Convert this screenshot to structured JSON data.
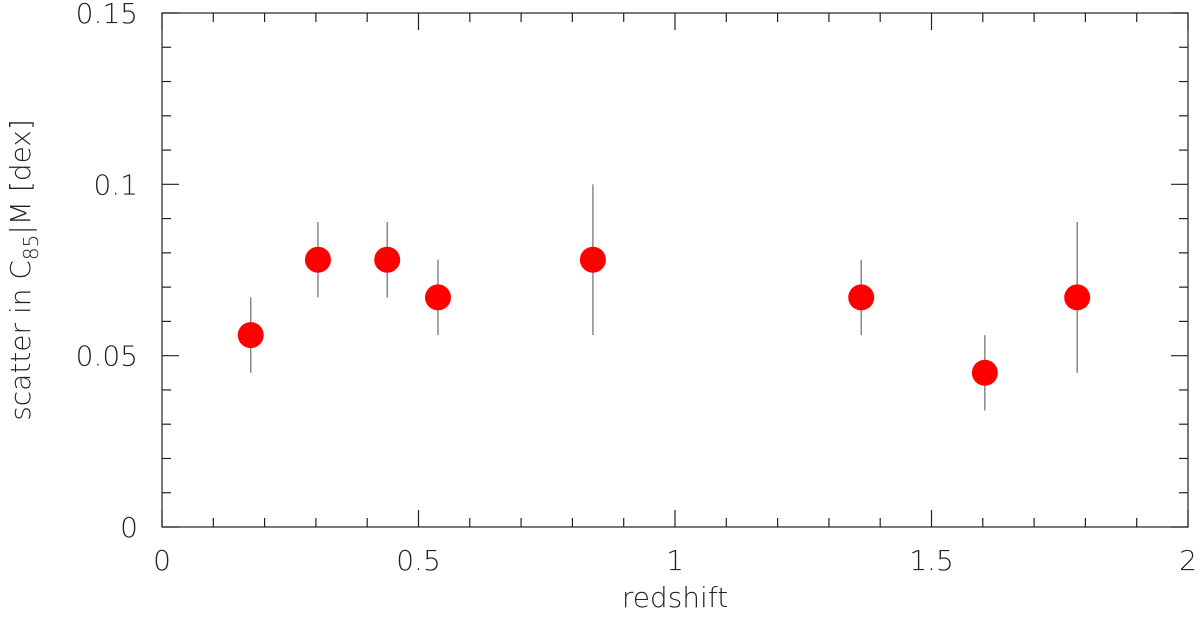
{
  "chart_data": {
    "type": "scatter",
    "xlabel": "redshift",
    "ylabel_start": "scatter in C",
    "ylabel_sub": "85",
    "ylabel_end": "|M [dex]",
    "x": [
      0.173,
      0.304,
      0.439,
      0.538,
      0.84,
      1.363,
      1.604,
      1.784
    ],
    "values": [
      0.056,
      0.078,
      0.078,
      0.067,
      0.078,
      0.067,
      0.045,
      0.067
    ],
    "errors": [
      0.011,
      0.011,
      0.011,
      0.011,
      0.022,
      0.011,
      0.011,
      0.022
    ],
    "color": "#ff0000",
    "error_color": "#777777",
    "xlim": [
      0,
      2
    ],
    "ylim": [
      0,
      0.15
    ],
    "xticks": [
      0,
      0.5,
      1,
      1.5,
      2
    ],
    "yticks": [
      0,
      0.05,
      0.1,
      0.15
    ],
    "xminorticks": [
      0.1,
      0.2,
      0.3,
      0.4,
      0.6,
      0.7,
      0.8,
      0.9,
      1.1,
      1.2,
      1.3,
      1.4,
      1.6,
      1.7,
      1.8,
      1.9
    ],
    "yminorticks": [
      0.01,
      0.02,
      0.03,
      0.04,
      0.06,
      0.07,
      0.08,
      0.09,
      0.11,
      0.12,
      0.13,
      0.14
    ]
  }
}
